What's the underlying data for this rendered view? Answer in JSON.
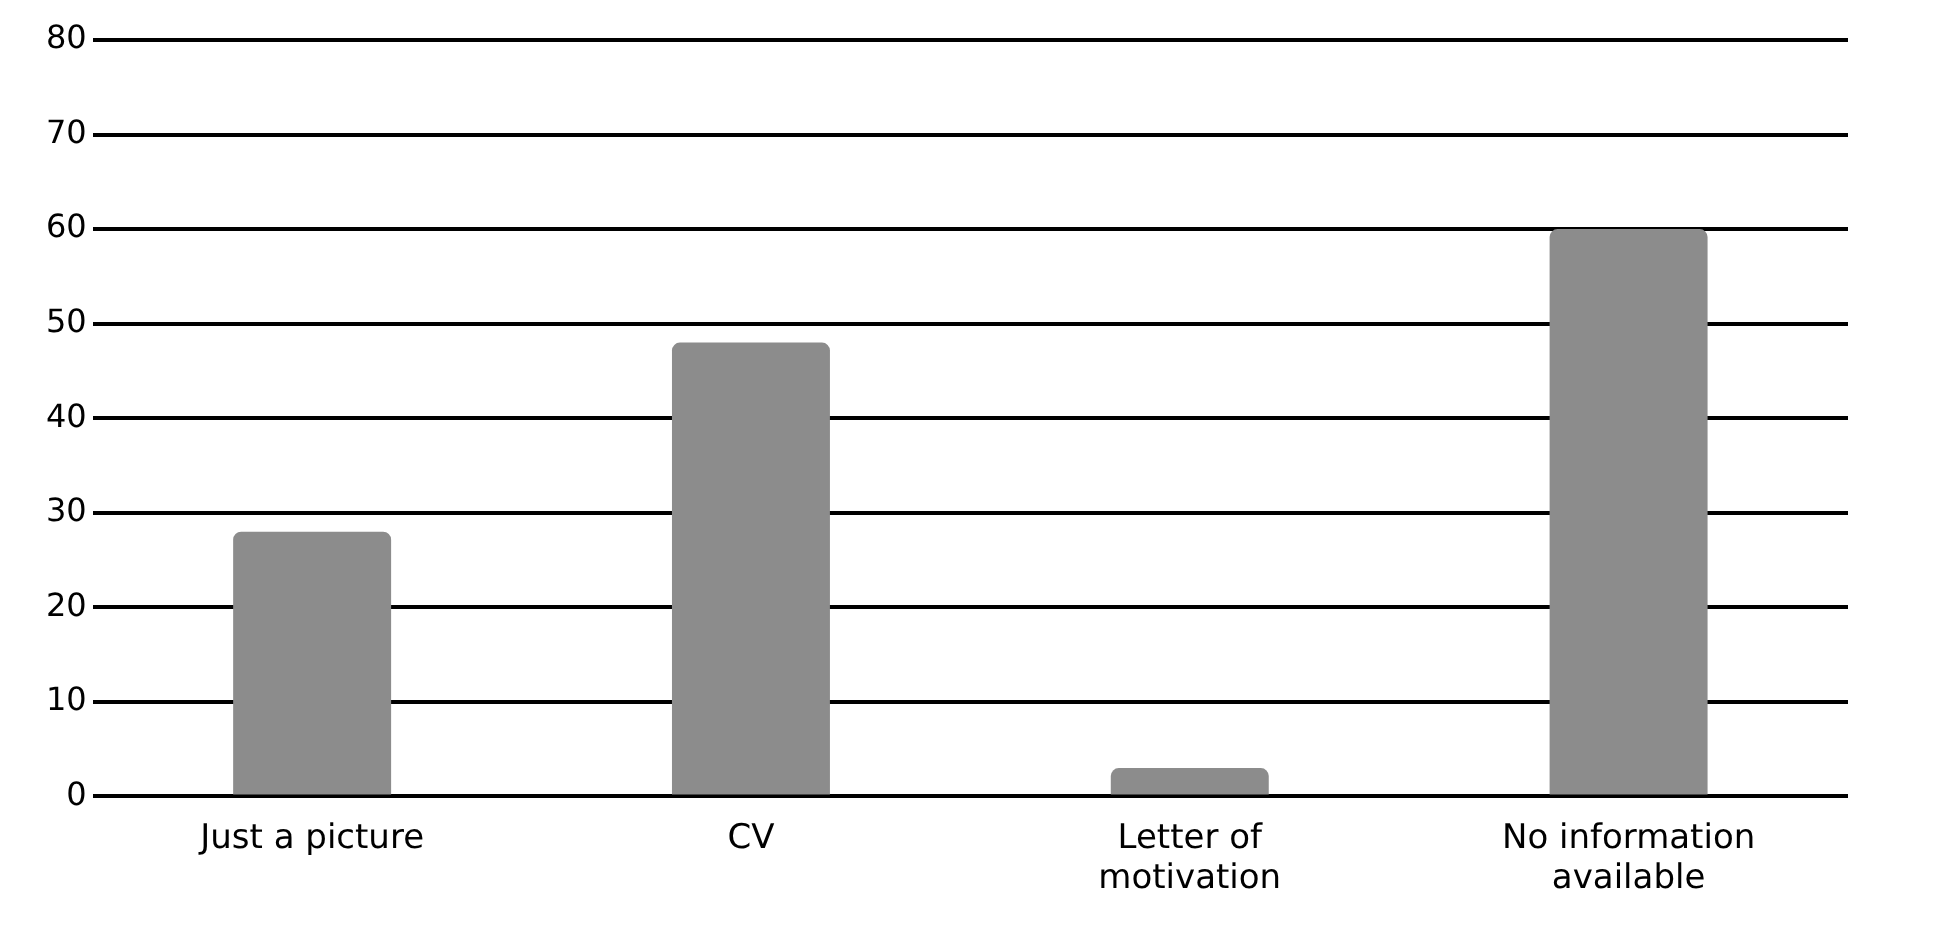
{
  "chart_data": {
    "type": "bar",
    "categories": [
      "Just a picture",
      "CV",
      "Letter of motivation",
      "No information available"
    ],
    "values": [
      28,
      48,
      3,
      60
    ],
    "color": "#8c8c8c",
    "ylim": [
      0,
      80
    ],
    "yticks": [
      0,
      10,
      20,
      30,
      40,
      50,
      60,
      70,
      80
    ],
    "grid": "y",
    "legend": false
  }
}
